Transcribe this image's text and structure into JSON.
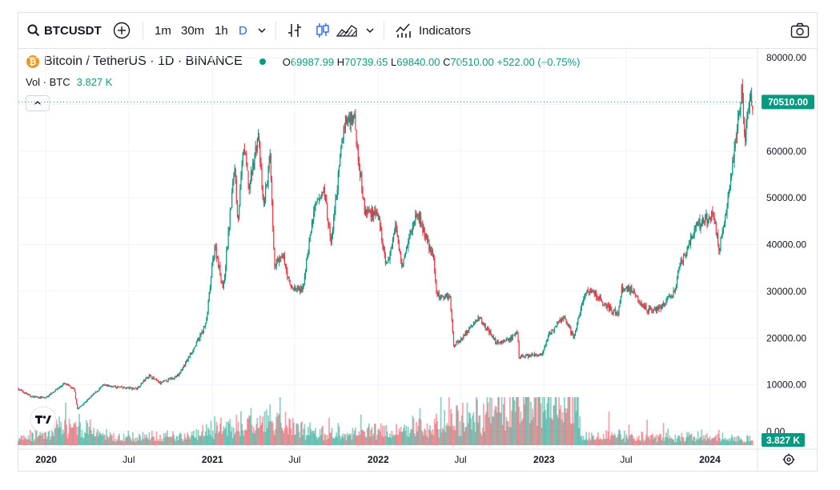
{
  "toolbar": {
    "symbol": "BTCUSDT",
    "intervals": [
      "1m",
      "30m",
      "1h",
      "D"
    ],
    "active_interval": "D",
    "indicators_label": "Indicators",
    "icons": [
      "search-icon",
      "add-icon",
      "chevron-down-icon",
      "bar-style-icon",
      "candles-icon",
      "area-chart-icon",
      "indicators-icon",
      "camera-icon"
    ]
  },
  "legend": {
    "title": "Bitcoin / TetherUS · 1D · BINANCE",
    "open_label": "O",
    "open": "69987.99",
    "high_label": "H",
    "high": "70739.65",
    "low_label": "L",
    "low": "69840.00",
    "close_label": "C",
    "close": "70510.00",
    "change": "+522.00 (+0.75%)",
    "vol_label": "Vol · BTC",
    "vol_value": "3.827 K"
  },
  "colors": {
    "up": "#089981",
    "down": "#f23645",
    "accent": "#2962ff",
    "price_badge": "#089981"
  },
  "chart_data": {
    "type": "candlestick",
    "symbol": "BTCUSDT",
    "interval": "1D",
    "y_ticks": [
      "80000.00",
      "70000.00",
      "60000.00",
      "50000.00",
      "40000.00",
      "30000.00",
      "20000.00",
      "10000.00",
      "0.00"
    ],
    "ylim": [
      0,
      80000
    ],
    "x_ticks": [
      "2020",
      "Jul",
      "2021",
      "Jul",
      "2022",
      "Jul",
      "2023",
      "Jul",
      "2024"
    ],
    "x_tick_dates": [
      "2020-01-01",
      "2020-07-01",
      "2021-01-01",
      "2021-07-01",
      "2022-01-01",
      "2022-07-01",
      "2023-01-01",
      "2023-07-01",
      "2024-01-01"
    ],
    "xlim": [
      "2019-11-01",
      "2024-04-15"
    ],
    "last_price": 70510,
    "last_price_label": "70510.00",
    "last_volume_label": "3.827 K",
    "price_path": [
      [
        "2019-11-01",
        9200
      ],
      [
        "2019-12-01",
        7500
      ],
      [
        "2020-01-01",
        7200
      ],
      [
        "2020-02-12",
        10300
      ],
      [
        "2020-03-05",
        9000
      ],
      [
        "2020-03-12",
        4800
      ],
      [
        "2020-04-01",
        6600
      ],
      [
        "2020-05-08",
        9900
      ],
      [
        "2020-06-15",
        9400
      ],
      [
        "2020-07-20",
        9200
      ],
      [
        "2020-08-17",
        12000
      ],
      [
        "2020-09-10",
        10300
      ],
      [
        "2020-10-20",
        12000
      ],
      [
        "2020-11-30",
        19000
      ],
      [
        "2020-12-20",
        23000
      ],
      [
        "2021-01-08",
        40000
      ],
      [
        "2021-01-27",
        30500
      ],
      [
        "2021-02-21",
        57000
      ],
      [
        "2021-02-28",
        45000
      ],
      [
        "2021-03-13",
        61000
      ],
      [
        "2021-03-25",
        52000
      ],
      [
        "2021-04-14",
        63500
      ],
      [
        "2021-04-25",
        48000
      ],
      [
        "2021-05-10",
        58000
      ],
      [
        "2021-05-19",
        36000
      ],
      [
        "2021-06-10",
        37000
      ],
      [
        "2021-06-22",
        31000
      ],
      [
        "2021-07-20",
        30000
      ],
      [
        "2021-08-14",
        47000
      ],
      [
        "2021-09-06",
        52000
      ],
      [
        "2021-09-21",
        40000
      ],
      [
        "2021-10-20",
        66000
      ],
      [
        "2021-11-10",
        68000
      ],
      [
        "2021-11-26",
        54000
      ],
      [
        "2021-12-04",
        47000
      ],
      [
        "2021-12-31",
        47000
      ],
      [
        "2022-01-22",
        35000
      ],
      [
        "2022-02-10",
        44000
      ],
      [
        "2022-02-24",
        36000
      ],
      [
        "2022-03-29",
        47000
      ],
      [
        "2022-04-20",
        41000
      ],
      [
        "2022-05-05",
        37000
      ],
      [
        "2022-05-12",
        29000
      ],
      [
        "2022-06-10",
        29000
      ],
      [
        "2022-06-18",
        18500
      ],
      [
        "2022-07-01",
        19500
      ],
      [
        "2022-08-14",
        24500
      ],
      [
        "2022-09-20",
        19000
      ],
      [
        "2022-10-25",
        20000
      ],
      [
        "2022-11-06",
        21000
      ],
      [
        "2022-11-09",
        16000
      ],
      [
        "2022-12-31",
        16500
      ],
      [
        "2023-01-15",
        21000
      ],
      [
        "2023-02-16",
        24500
      ],
      [
        "2023-03-10",
        20000
      ],
      [
        "2023-03-30",
        28500
      ],
      [
        "2023-04-14",
        30500
      ],
      [
        "2023-05-20",
        27000
      ],
      [
        "2023-06-15",
        25000
      ],
      [
        "2023-06-23",
        30500
      ],
      [
        "2023-07-15",
        30500
      ],
      [
        "2023-08-17",
        26000
      ],
      [
        "2023-09-15",
        26500
      ],
      [
        "2023-10-20",
        30000
      ],
      [
        "2023-10-25",
        34500
      ],
      [
        "2023-12-05",
        44000
      ],
      [
        "2024-01-10",
        46500
      ],
      [
        "2024-01-23",
        39000
      ],
      [
        "2024-02-10",
        48000
      ],
      [
        "2024-02-28",
        62000
      ],
      [
        "2024-03-05",
        66000
      ],
      [
        "2024-03-14",
        73500
      ],
      [
        "2024-03-20",
        62000
      ],
      [
        "2024-03-27",
        70000
      ],
      [
        "2024-04-05",
        70510
      ]
    ],
    "volume_path": [
      [
        "2019-11-01",
        0.7
      ],
      [
        "2020-03-12",
        2.2
      ],
      [
        "2020-06-01",
        0.8
      ],
      [
        "2020-12-01",
        1.0
      ],
      [
        "2021-01-15",
        1.8
      ],
      [
        "2021-05-19",
        2.5
      ],
      [
        "2021-09-01",
        1.2
      ],
      [
        "2022-01-15",
        1.4
      ],
      [
        "2022-06-15",
        2.5
      ],
      [
        "2022-09-01",
        3.5
      ],
      [
        "2022-11-09",
        5.0
      ],
      [
        "2023-01-15",
        4.5
      ],
      [
        "2023-03-10",
        6.0
      ],
      [
        "2023-03-25",
        1.0
      ],
      [
        "2024-04-05",
        0.7
      ]
    ]
  }
}
